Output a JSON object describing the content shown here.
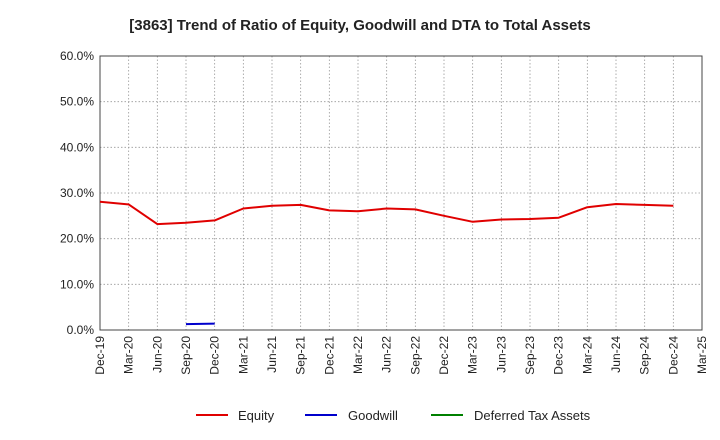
{
  "chart_data": {
    "type": "line",
    "title": "[3863]  Trend of Ratio of Equity, Goodwill and DTA to Total Assets",
    "xlabel": "",
    "ylabel": "",
    "ylim": [
      0,
      60
    ],
    "yticks": [
      "0.0%",
      "10.0%",
      "20.0%",
      "30.0%",
      "40.0%",
      "50.0%",
      "60.0%"
    ],
    "ytick_values": [
      0,
      10,
      20,
      30,
      40,
      50,
      60
    ],
    "categories": [
      "Dec-19",
      "Mar-20",
      "Jun-20",
      "Sep-20",
      "Dec-20",
      "Mar-21",
      "Jun-21",
      "Sep-21",
      "Dec-21",
      "Mar-22",
      "Jun-22",
      "Sep-22",
      "Dec-22",
      "Mar-23",
      "Jun-23",
      "Sep-23",
      "Dec-23",
      "Mar-24",
      "Jun-24",
      "Sep-24",
      "Dec-24",
      "Mar-25"
    ],
    "grid": true,
    "legend_position": "bottom",
    "series": [
      {
        "name": "Equity",
        "color": "#e00000",
        "values": [
          28.1,
          27.5,
          23.2,
          23.5,
          24.0,
          26.6,
          27.2,
          27.4,
          26.2,
          26.0,
          26.6,
          26.4,
          25.0,
          23.7,
          24.2,
          24.3,
          24.6,
          26.9,
          27.6,
          27.4,
          27.2,
          null
        ]
      },
      {
        "name": "Goodwill",
        "color": "#0000cc",
        "values": [
          null,
          null,
          null,
          1.3,
          1.4,
          null,
          null,
          null,
          null,
          null,
          null,
          null,
          null,
          null,
          null,
          null,
          null,
          null,
          null,
          null,
          null,
          null
        ]
      },
      {
        "name": "Deferred Tax Assets",
        "color": "#008000",
        "values": [
          null,
          null,
          null,
          null,
          null,
          null,
          null,
          null,
          null,
          null,
          null,
          null,
          null,
          null,
          null,
          null,
          null,
          null,
          null,
          null,
          null,
          null
        ]
      }
    ]
  }
}
